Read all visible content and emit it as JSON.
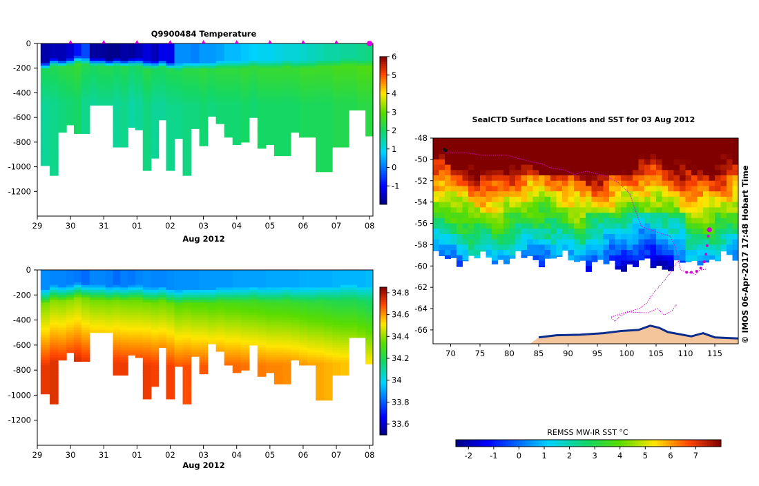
{
  "chart_data": [
    {
      "type": "heatmap",
      "title": "Q9900484  Temperature",
      "xlabel": "Aug 2012",
      "x_ticks": [
        "29",
        "30",
        "31",
        "01",
        "02",
        "03",
        "04",
        "05",
        "06",
        "07",
        "08"
      ],
      "y_ticks": [
        "0",
        "-200",
        "-400",
        "-600",
        "-800",
        "-1000",
        "-1200"
      ],
      "ylim": [
        -1400,
        0
      ],
      "xlim": [
        29.0,
        39.1
      ],
      "profile_days": [
        29.25,
        29.5,
        29.75,
        30.0,
        30.2,
        30.45,
        30.7,
        30.95,
        31.15,
        31.4,
        31.6,
        31.85,
        32.05,
        32.3,
        32.55,
        32.75,
        33.0,
        33.25,
        33.5,
        33.75,
        34.0,
        34.25,
        34.5,
        34.75,
        35.0,
        35.25,
        35.5,
        35.75,
        36.0,
        36.25,
        36.5,
        36.75,
        37.0,
        37.25,
        37.5,
        37.75,
        38.0,
        38.25,
        38.5,
        38.75,
        39.0
      ],
      "max_depths": [
        -990,
        -1070,
        -720,
        -660,
        -730,
        -730,
        -500,
        -500,
        -500,
        -840,
        -840,
        -680,
        -700,
        -1030,
        -930,
        -620,
        -1030,
        -770,
        -1070,
        -690,
        -830,
        -590,
        -650,
        -760,
        -820,
        -800,
        -600,
        -850,
        -820,
        -910,
        -910,
        -720,
        -760,
        -760,
        -1040,
        -1040,
        -840,
        -840,
        -540,
        -540,
        -750
      ],
      "surface_temp": [
        -1.7,
        -1.6,
        -1.6,
        -1.4,
        -0.9,
        -0.4,
        -1.8,
        -1.8,
        -1.9,
        -1.9,
        -1.7,
        -1.8,
        -1.6,
        -1.3,
        -1.6,
        -1.2,
        -1.2,
        0.2,
        0.2,
        0.1,
        0.3,
        0.3,
        0.4,
        0.6,
        0.6,
        0.7,
        0.8,
        0.9,
        0.9,
        1.0,
        1.1,
        1.1,
        1.2,
        1.3,
        1.4,
        1.5,
        1.5,
        1.6,
        1.6,
        1.7,
        1.8
      ],
      "deep_temp": [
        1.6,
        1.7,
        1.8,
        1.9,
        2.0,
        1.7,
        1.6,
        1.7,
        1.7,
        1.6,
        1.7,
        1.5,
        1.6,
        1.8,
        1.6,
        1.6,
        1.7,
        1.7,
        1.8,
        1.8,
        1.9,
        1.8,
        1.9,
        1.9,
        1.9,
        2.0,
        1.9,
        2.0,
        2.0,
        2.0,
        2.0,
        2.0,
        2.1,
        2.1,
        2.1,
        2.1,
        2.2,
        2.2,
        2.2,
        2.3,
        2.3
      ],
      "thermocline_depth": [
        -170,
        -140,
        -150,
        -140,
        -120,
        -130,
        -140,
        -140,
        -150,
        -140,
        -150,
        -140,
        -140,
        -160,
        -160,
        -150,
        -170,
        -180,
        -170,
        -170,
        -170,
        -170,
        -160,
        -160,
        -160,
        -160,
        -150,
        -160,
        -160,
        -160,
        -150,
        -160,
        -160,
        -160,
        -150,
        -150,
        -150,
        -140,
        -140,
        -150,
        -150
      ],
      "surface_markers": [
        30.0,
        31.0,
        32.0,
        33.0,
        34.0,
        35.0,
        36.0,
        37.0,
        38.0
      ],
      "current_marker": 39.0,
      "colorbar": {
        "min": -2,
        "max": 6,
        "ticks": [
          "6",
          "5",
          "4",
          "3",
          "2",
          "1",
          "0",
          "-1"
        ],
        "tick_values": [
          6,
          5,
          4,
          3,
          2,
          1,
          0,
          -1
        ]
      },
      "colors": {
        "marker": "#e000e0"
      }
    },
    {
      "type": "heatmap",
      "title": "",
      "xlabel": "Aug 2012",
      "x_ticks": [
        "29",
        "30",
        "31",
        "01",
        "02",
        "03",
        "04",
        "05",
        "06",
        "07",
        "08"
      ],
      "y_ticks": [
        "0",
        "-200",
        "-400",
        "-600",
        "-800",
        "-1000",
        "-1200"
      ],
      "ylim": [
        -1400,
        0
      ],
      "xlim": [
        29.0,
        39.1
      ],
      "surface_salinity": [
        33.87,
        33.86,
        33.86,
        33.85,
        33.84,
        33.82,
        33.86,
        33.86,
        33.85,
        33.82,
        33.85,
        33.84,
        33.86,
        33.87,
        33.86,
        33.86,
        33.87,
        33.88,
        33.88,
        33.88,
        33.89,
        33.89,
        33.89,
        33.89,
        33.9,
        33.9,
        33.9,
        33.9,
        33.91,
        33.91,
        33.91,
        33.91,
        33.92,
        33.92,
        33.92,
        33.92,
        33.93,
        33.93,
        33.93,
        33.93,
        33.94
      ],
      "deep_salinity": [
        34.72,
        34.73,
        34.73,
        34.74,
        34.74,
        34.72,
        34.71,
        34.71,
        34.71,
        34.71,
        34.71,
        34.7,
        34.7,
        34.71,
        34.7,
        34.7,
        34.7,
        34.68,
        34.68,
        34.67,
        34.67,
        34.66,
        34.66,
        34.65,
        34.65,
        34.64,
        34.63,
        34.63,
        34.62,
        34.62,
        34.61,
        34.61,
        34.6,
        34.59,
        34.58,
        34.57,
        34.56,
        34.55,
        34.55,
        34.54,
        34.52
      ],
      "colorbar": {
        "min": 33.5,
        "max": 34.85,
        "ticks": [
          "34.8",
          "34.6",
          "34.4",
          "34.2",
          "34",
          "33.8",
          "33.6"
        ],
        "tick_values": [
          34.8,
          34.6,
          34.4,
          34.2,
          34.0,
          33.8,
          33.6
        ]
      }
    },
    {
      "type": "heatmap",
      "title": "SealCTD Surface Locations and SST for 03 Aug 2012",
      "xlabel": "",
      "x_ticks": [
        "70",
        "75",
        "80",
        "85",
        "90",
        "95",
        "100",
        "105",
        "110",
        "115"
      ],
      "x_tick_values": [
        70,
        75,
        80,
        85,
        90,
        95,
        100,
        105,
        110,
        115
      ],
      "y_ticks": [
        "-48",
        "-50",
        "-52",
        "-54",
        "-56",
        "-58",
        "-60",
        "-62",
        "-64",
        "-66"
      ],
      "y_tick_values": [
        -48,
        -50,
        -52,
        -54,
        -56,
        -58,
        -60,
        -62,
        -64,
        -66
      ],
      "xlim": [
        67,
        119
      ],
      "ylim": [
        -67.3,
        -48
      ],
      "colorbar_label": "REMSS MW-IR SST °C",
      "colorbar": {
        "min": -2.5,
        "max": 8,
        "ticks": [
          "-2",
          "-1",
          "0",
          "1",
          "2",
          "3",
          "4",
          "5",
          "6",
          "7"
        ],
        "tick_values": [
          -2,
          -1,
          0,
          1,
          2,
          3,
          4,
          5,
          6,
          7
        ]
      },
      "side_label": "© IMOS 06-Apr-2017 17:48 Hobart Time",
      "track": [
        [
          113.5,
          -60.3
        ],
        [
          112.2,
          -60.4
        ],
        [
          111.8,
          -60.8
        ],
        [
          110.5,
          -60.6
        ],
        [
          109.2,
          -60.4
        ],
        [
          108.8,
          -59.5
        ],
        [
          108.3,
          -58.2
        ],
        [
          107.4,
          -57.2
        ],
        [
          105.0,
          -56.8
        ],
        [
          102.5,
          -56.3
        ],
        [
          101.3,
          -54.5
        ],
        [
          100.5,
          -53.2
        ],
        [
          98.6,
          -52.2
        ],
        [
          96.2,
          -51.5
        ],
        [
          94.5,
          -51.3
        ],
        [
          93.2,
          -51.1
        ],
        [
          91.0,
          -51.4
        ],
        [
          89.5,
          -51.0
        ],
        [
          87.1,
          -50.8
        ],
        [
          85.5,
          -50.4
        ],
        [
          83.5,
          -50.2
        ],
        [
          81.4,
          -49.9
        ],
        [
          79.6,
          -49.6
        ],
        [
          77.0,
          -49.6
        ],
        [
          75.2,
          -49.6
        ],
        [
          72.8,
          -49.4
        ],
        [
          71.0,
          -49.4
        ],
        [
          69.4,
          -49.4
        ],
        [
          68.6,
          -49.2
        ]
      ],
      "track2": [
        [
          108.6,
          -59.6
        ],
        [
          107.5,
          -60.6
        ],
        [
          106.2,
          -61.5
        ],
        [
          104.6,
          -62.5
        ],
        [
          103.4,
          -63.5
        ],
        [
          102.1,
          -64.0
        ],
        [
          100.4,
          -64.3
        ],
        [
          98.8,
          -64.7
        ],
        [
          98.0,
          -65.2
        ],
        [
          97.3,
          -64.8
        ],
        [
          100.0,
          -64.3
        ],
        [
          103.6,
          -64.4
        ],
        [
          105.2,
          -64.0
        ],
        [
          106.4,
          -64.6
        ],
        [
          107.7,
          -64.2
        ],
        [
          108.5,
          -63.6
        ]
      ],
      "recent_points": [
        [
          113.9,
          -56.6
        ],
        [
          113.9,
          -57.2
        ],
        [
          113.7,
          -58.1
        ],
        [
          113.5,
          -58.9
        ],
        [
          113.2,
          -59.6
        ],
        [
          112.6,
          -60.2
        ],
        [
          111.9,
          -60.5
        ],
        [
          111.0,
          -60.6
        ],
        [
          110.2,
          -60.6
        ]
      ],
      "current_position": [
        114.1,
        -56.6
      ],
      "colors": {
        "track": "#d600d6",
        "land": "#f4c49a",
        "ice": "#0a2d8c"
      }
    }
  ]
}
